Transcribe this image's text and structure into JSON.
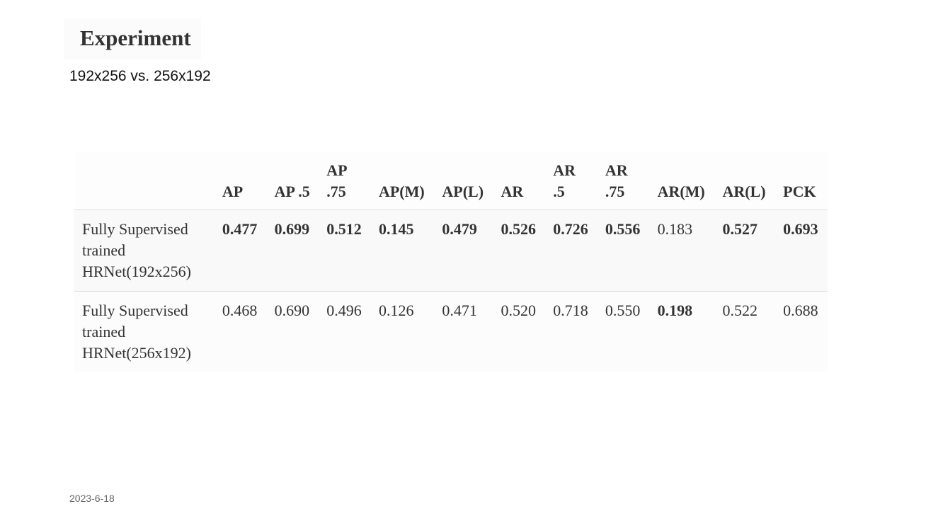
{
  "header": {
    "title": "Experiment",
    "subtitle": "192x256 vs. 256x192"
  },
  "table": {
    "columns": [
      "AP",
      "AP .5",
      "AP .75",
      "AP(M)",
      "AP(L)",
      "AR",
      "AR .5",
      "AR .75",
      "AR(M)",
      "AR(L)",
      "PCK"
    ],
    "rows": [
      {
        "label": "Fully Supervised trained HRNet(192x256)",
        "values": [
          "0.477",
          "0.699",
          "0.512",
          "0.145",
          "0.479",
          "0.526",
          "0.726",
          "0.556",
          "0.183",
          "0.527",
          "0.693"
        ],
        "bold": [
          true,
          true,
          true,
          true,
          true,
          true,
          true,
          true,
          false,
          true,
          true
        ]
      },
      {
        "label": "Fully Supervised trained HRNet(256x192)",
        "values": [
          "0.468",
          "0.690",
          "0.496",
          "0.126",
          "0.471",
          "0.520",
          "0.718",
          "0.550",
          "0.198",
          "0.522",
          "0.688"
        ],
        "bold": [
          false,
          false,
          false,
          false,
          false,
          false,
          false,
          false,
          true,
          false,
          false
        ]
      }
    ]
  },
  "footer": {
    "date": "2023-6-18"
  }
}
